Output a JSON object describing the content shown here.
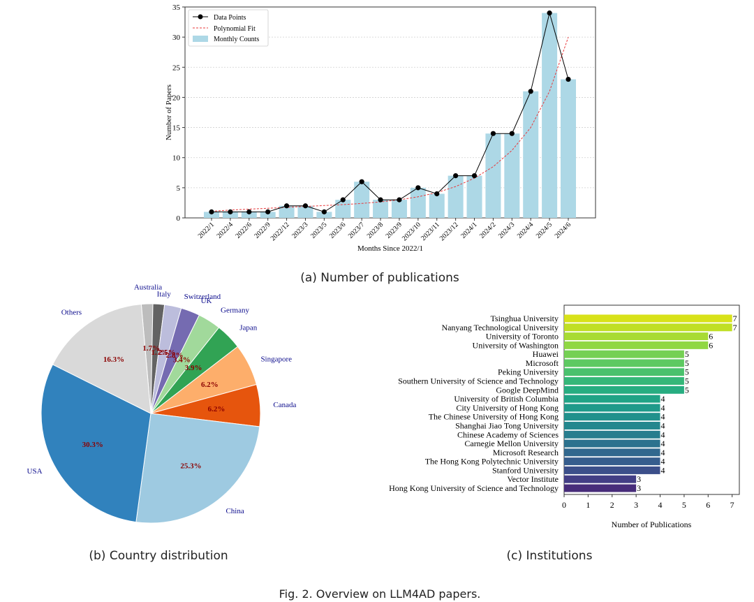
{
  "figure": {
    "caption": "Fig. 2.  Overview on LLM4AD papers.",
    "panel_a_caption": "(a) Number of publications",
    "panel_b_caption": "(b) Country distribution",
    "panel_c_caption": "(c) Institutions"
  },
  "colors": {
    "bar": "#add8e6",
    "line": "#000000",
    "fit": "#e8383b",
    "pie_label": "#0b0b8c",
    "pct_label": "#8b0000"
  },
  "chart_data": [
    {
      "id": "publications",
      "type": "bar",
      "xlabel": "Months Since 2022/1",
      "ylabel": "Number of Papers",
      "ylim": [
        0,
        35
      ],
      "yticks": [
        0,
        5,
        10,
        15,
        20,
        25,
        30,
        35
      ],
      "grid": "horizontal dotted",
      "legend_position": "top-left",
      "legend": [
        "Data Points",
        "Polynomial Fit",
        "Monthly Counts"
      ],
      "categories": [
        "2022/1",
        "2022/4",
        "2022/6",
        "2022/9",
        "2022/12",
        "2023/3",
        "2023/5",
        "2023/6",
        "2023/7",
        "2023/8",
        "2023/9",
        "2023/10",
        "2023/11",
        "2023/12",
        "2024/1",
        "2024/2",
        "2024/3",
        "2024/4",
        "2024/5",
        "2024/6"
      ],
      "series": [
        {
          "name": "Monthly Counts",
          "type": "bar",
          "values": [
            1,
            1,
            1,
            1,
            2,
            2,
            1,
            3,
            6,
            3,
            3,
            5,
            4,
            7,
            7,
            14,
            14,
            21,
            34,
            23
          ]
        },
        {
          "name": "Data Points",
          "type": "line",
          "values": [
            1,
            1,
            1,
            1,
            2,
            2,
            1,
            3,
            6,
            3,
            3,
            5,
            4,
            7,
            7,
            14,
            14,
            21,
            34,
            23
          ]
        },
        {
          "name": "Polynomial Fit",
          "type": "line",
          "style": "dashed",
          "values": [
            1.1,
            1.3,
            1.45,
            1.6,
            1.75,
            1.9,
            2.05,
            2.2,
            2.4,
            2.65,
            3.0,
            3.5,
            4.2,
            5.2,
            6.6,
            8.5,
            11.2,
            15.0,
            21.0,
            30.0
          ]
        }
      ]
    },
    {
      "id": "countries",
      "type": "pie",
      "start_angle_deg": 95,
      "direction": "clockwise",
      "slices": [
        {
          "label": "Australia",
          "value": 1.7,
          "pct": "1.7%",
          "color": "#bdbdbd"
        },
        {
          "label": "Italy",
          "value": 1.7,
          "pct": "1.7%",
          "color": "#636363"
        },
        {
          "label": "Switzerland",
          "value": 2.5,
          "pct": "2.5%",
          "color": "#bcbddc"
        },
        {
          "label": "UK",
          "value": 2.8,
          "pct": "2.8%",
          "color": "#756bb1"
        },
        {
          "label": "Germany",
          "value": 3.4,
          "pct": "3.4%",
          "color": "#a1d99b"
        },
        {
          "label": "Japan",
          "value": 3.9,
          "pct": "3.9%",
          "color": "#31a354"
        },
        {
          "label": "Singapore",
          "value": 6.2,
          "pct": "6.2%",
          "color": "#fdae6b"
        },
        {
          "label": "Canada",
          "value": 6.2,
          "pct": "6.2%",
          "color": "#e6550d"
        },
        {
          "label": "China",
          "value": 25.3,
          "pct": "25.3%",
          "color": "#9ecae1"
        },
        {
          "label": "USA",
          "value": 30.3,
          "pct": "30.3%",
          "color": "#3182bd"
        },
        {
          "label": "Others",
          "value": 16.3,
          "pct": "16.3%",
          "color": "#d9d9d9"
        }
      ]
    },
    {
      "id": "institutions",
      "type": "bar",
      "orientation": "horizontal",
      "xlabel": "Number of Publications",
      "xlim": [
        0,
        7
      ],
      "xticks": [
        0,
        1,
        2,
        3,
        4,
        5,
        6,
        7
      ],
      "categories": [
        "Tsinghua University",
        "Nanyang Technological University",
        "University of Toronto",
        "University of Washington",
        "Huawei",
        "Microsoft",
        "Peking University",
        "Southern University of Science and Technology",
        "Google DeepMind",
        "University of British Columbia",
        "City University of Hong Kong",
        "The Chinese University of Hong Kong",
        "Shanghai Jiao Tong University",
        "Chinese Academy of Sciences",
        "Carnegie Mellon University",
        "Microsoft Research",
        "The Hong Kong Polytechnic University",
        "Stanford University",
        "Vector Institute",
        "Hong Kong University of Science and Technology"
      ],
      "values": [
        7,
        7,
        6,
        6,
        5,
        5,
        5,
        5,
        5,
        4,
        4,
        4,
        4,
        4,
        4,
        4,
        4,
        4,
        3,
        3
      ],
      "colors": [
        "#d8e219",
        "#c0df25",
        "#a8db34",
        "#90d743",
        "#75d054",
        "#5ec962",
        "#4ac16d",
        "#35b779",
        "#27ad81",
        "#20a386",
        "#1f9a8a",
        "#21918c",
        "#24878e",
        "#287d8e",
        "#2c728e",
        "#31688e",
        "#365d8d",
        "#3c4f8a",
        "#433e85",
        "#472c7a"
      ]
    }
  ]
}
